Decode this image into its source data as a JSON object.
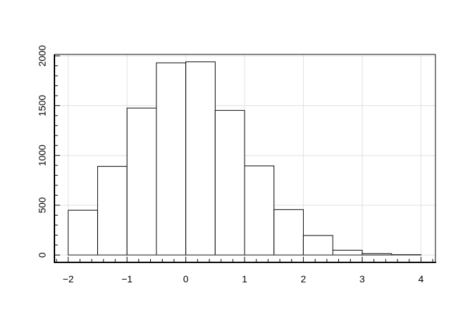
{
  "chart_data": {
    "type": "bar",
    "subtype": "histogram",
    "title": "",
    "xlabel": "",
    "ylabel": "",
    "bin_edges": [
      -2,
      -1.5,
      -1,
      -0.5,
      0,
      0.5,
      1,
      1.5,
      2,
      2.5,
      3,
      3.5,
      4
    ],
    "values": [
      450,
      890,
      1475,
      1930,
      1940,
      1452,
      895,
      456,
      196,
      48,
      14,
      4
    ],
    "xlim": [
      -2.25,
      4.25
    ],
    "ylim": [
      -70,
      2020
    ],
    "x_ticks": [
      -2,
      -1,
      0,
      1,
      2,
      3,
      4
    ],
    "x_tick_labels": [
      "−2",
      "−1",
      "0",
      "1",
      "2",
      "3",
      "4"
    ],
    "y_ticks": [
      0,
      500,
      1000,
      1500,
      2000
    ],
    "y_tick_labels": [
      "0",
      "500",
      "1000",
      "1500",
      "2000"
    ],
    "grid": true,
    "colors": {
      "bar_fill": "#ffffff",
      "bar_edge": "#000000",
      "grid": "#e0e0e0"
    }
  }
}
